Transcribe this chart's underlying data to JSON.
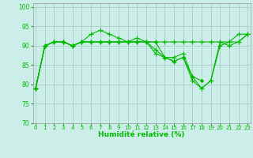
{
  "xlabel": "Humidité relative (%)",
  "background_color": "#cceee8",
  "grid_color": "#aacccc",
  "line_color": "#00bb00",
  "xlim": [
    -0.3,
    23.3
  ],
  "ylim": [
    70,
    101
  ],
  "yticks": [
    70,
    75,
    80,
    85,
    90,
    95,
    100
  ],
  "xticks": [
    0,
    1,
    2,
    3,
    4,
    5,
    6,
    7,
    8,
    9,
    10,
    11,
    12,
    13,
    14,
    15,
    16,
    17,
    18,
    19,
    20,
    21,
    22,
    23
  ],
  "series": [
    [
      79,
      90,
      91,
      91,
      90,
      91,
      93,
      94,
      93,
      92,
      91,
      92,
      91,
      89,
      87,
      87,
      88,
      82,
      79,
      81,
      90,
      91,
      93,
      93
    ],
    [
      79,
      90,
      91,
      91,
      90,
      91,
      91,
      91,
      91,
      91,
      91,
      91,
      91,
      88,
      87,
      86,
      87,
      81,
      79,
      81,
      91,
      90,
      91,
      93
    ],
    [
      79,
      90,
      91,
      91,
      90,
      91,
      91,
      91,
      91,
      91,
      91,
      91,
      91,
      91,
      87,
      86,
      87,
      82,
      81,
      null,
      null,
      null,
      null,
      null
    ],
    [
      79,
      90,
      91,
      91,
      90,
      91,
      91,
      91,
      91,
      91,
      91,
      91,
      91,
      91,
      91,
      91,
      91,
      91,
      91,
      91,
      91,
      91,
      91,
      93
    ]
  ]
}
